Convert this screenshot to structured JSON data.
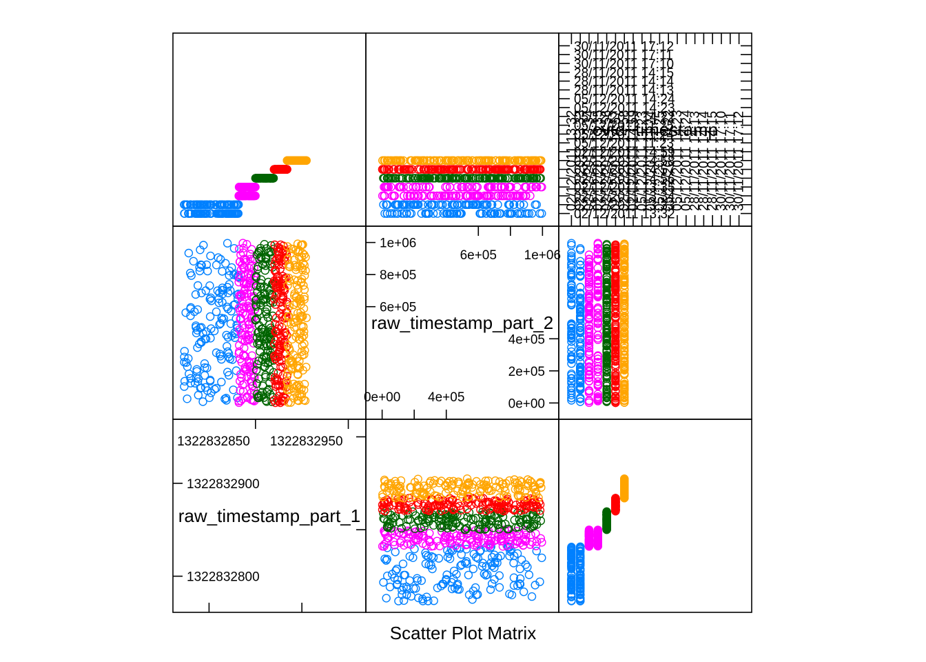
{
  "chart_data": {
    "type": "scatter",
    "title": "Scatter Plot Matrix",
    "variables": [
      "raw_timestamp_part_1",
      "raw_timestamp_part_2",
      "cvtd_timestamp"
    ],
    "diagonal_labels": [
      "raw_timestamp_part_1",
      "raw_timestamp_part_2",
      "cvtd_timestamp"
    ],
    "group_colors": [
      "#0080ff",
      "#ff00ff",
      "#006400",
      "#ff0000",
      "#ffa500"
    ],
    "groups": [
      {
        "id": 1,
        "color": "#0080ff",
        "cvtd_levels": [
          1,
          2
        ],
        "raw1_range": [
          1322832773,
          1322832832
        ],
        "raw2_range": [
          0,
          1000000
        ]
      },
      {
        "id": 2,
        "color": "#ff00ff",
        "cvtd_levels": [
          3,
          4
        ],
        "raw1_range": [
          1322832832,
          1322832850
        ],
        "raw2_range": [
          0,
          1000000
        ]
      },
      {
        "id": 3,
        "color": "#006400",
        "cvtd_levels": [
          5
        ],
        "raw1_range": [
          1322832850,
          1322832870
        ],
        "raw2_range": [
          0,
          1000000
        ]
      },
      {
        "id": 4,
        "color": "#ff0000",
        "cvtd_levels": [
          6
        ],
        "raw1_range": [
          1322832870,
          1322832884
        ],
        "raw2_range": [
          0,
          1000000
        ]
      },
      {
        "id": 5,
        "color": "#ffa500",
        "cvtd_levels": [
          7
        ],
        "raw1_range": [
          1322832884,
          1322832905
        ],
        "raw2_range": [
          0,
          1000000
        ]
      }
    ],
    "axes": {
      "raw_timestamp_part_1": {
        "range": [
          1322832770,
          1322832960
        ],
        "ticks_a": [
          1322832800,
          1322832900
        ],
        "ticks_b": [
          1322832850,
          1322832950
        ],
        "tick_labels_a": [
          "1322832800",
          "1322832900"
        ],
        "tick_labels_b": [
          "1322832850",
          "1322832950"
        ]
      },
      "raw_timestamp_part_2": {
        "range": [
          -50000,
          1050000
        ],
        "ticks_a": [
          0,
          200000,
          400000
        ],
        "ticks_b": [
          600000,
          800000,
          1000000
        ],
        "tick_labels_a": [
          "0e+00",
          "2e+05",
          "4e+05"
        ],
        "tick_labels_b": [
          "6e+05",
          "8e+05",
          "1e+06"
        ],
        "inner_labels_a": [
          "0e+00",
          "4e+05"
        ],
        "inner_labels_b": [
          "6e+05",
          "1e+06"
        ]
      },
      "cvtd_timestamp": {
        "range": [
          0.5,
          20.5
        ],
        "levels_shown": 7,
        "tick_labels": [
          "02/12/2011 13:32",
          "02/12/2011 13:33",
          "02/12/2011 13:34",
          "02/12/2011 13:35",
          "02/12/2011 14:56",
          "02/12/2011 14:57",
          "02/12/2011 14:58",
          "02/12/2011 14:59",
          "05/12/2011 11:23",
          "05/12/2011 11:24",
          "05/12/2011 11:25",
          "05/12/2011 14:22",
          "05/12/2011 14:23",
          "05/12/2011 14:24",
          "28/11/2011 14:13",
          "28/11/2011 14:14",
          "28/11/2011 14:15",
          "30/11/2011 17:10",
          "30/11/2011 17:11",
          "30/11/2011 17:12"
        ]
      }
    }
  }
}
